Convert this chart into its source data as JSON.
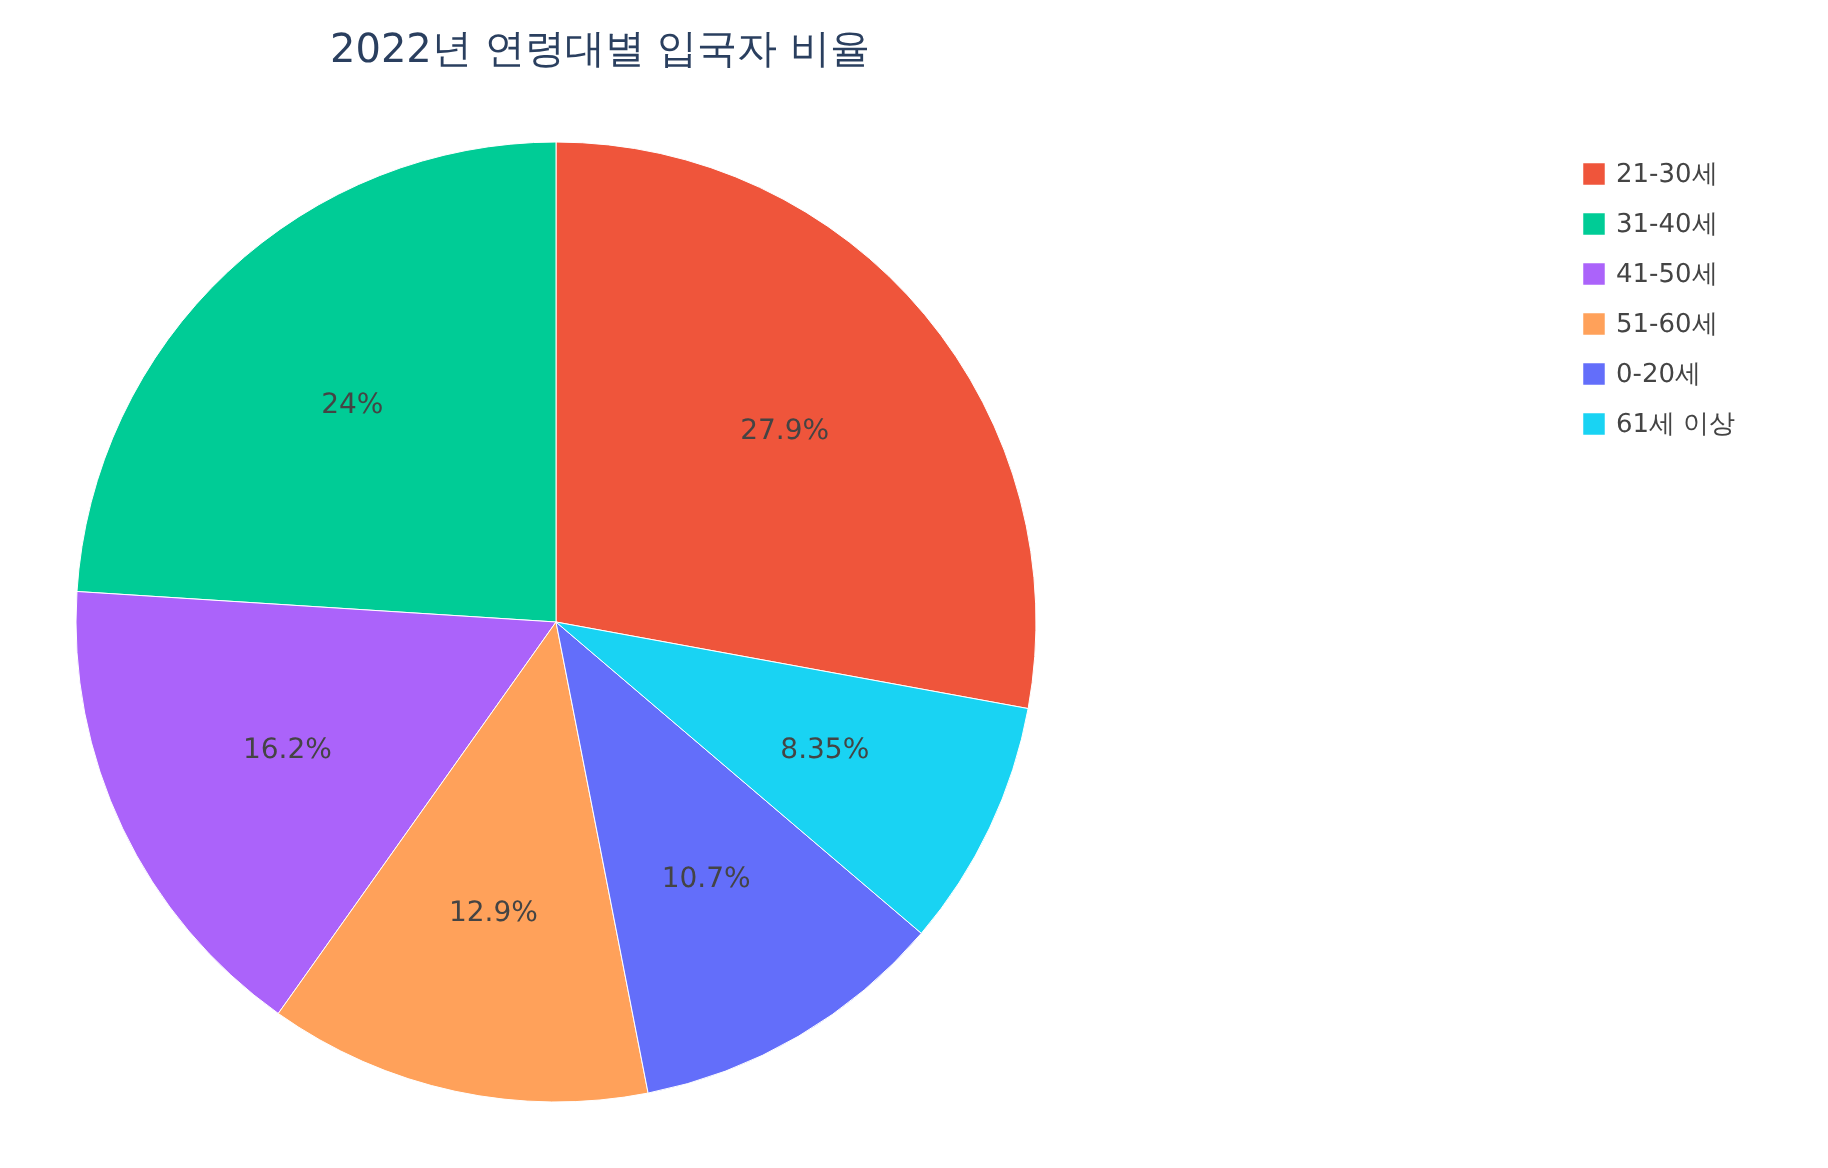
{
  "chart_data": {
    "type": "pie",
    "title": "2022년 연령대별 입국자 비율",
    "categories": [
      "21-30세",
      "31-40세",
      "41-50세",
      "51-60세",
      "0-20세",
      "61세 이상"
    ],
    "values": [
      27.9,
      24,
      16.2,
      12.9,
      10.7,
      8.35
    ],
    "colors": [
      "#ef553b",
      "#00cc96",
      "#ab63fa",
      "#ffa15a",
      "#636efa",
      "#19d3f3"
    ],
    "value_labels": [
      "27.9%",
      "24%",
      "16.2%",
      "12.9%",
      "10.7%",
      "8.35%"
    ],
    "legend": "top right"
  }
}
